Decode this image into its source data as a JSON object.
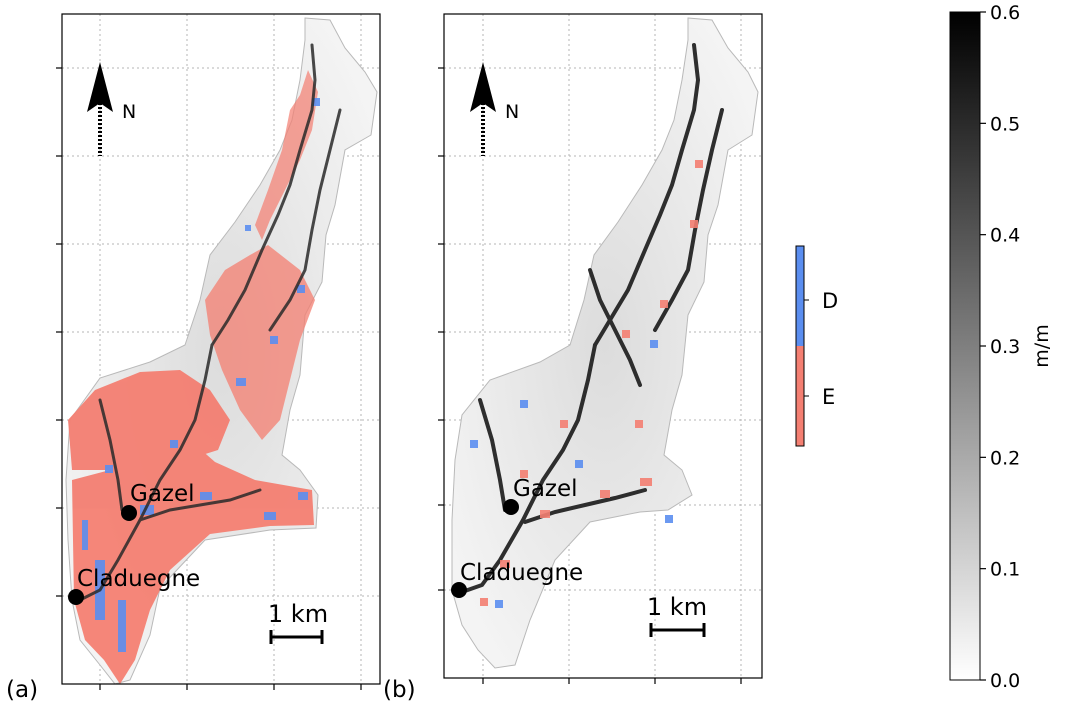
{
  "panels": [
    {
      "id": "a",
      "label": "(a)",
      "north": "N",
      "scale_bar": "1 km",
      "places": [
        {
          "name": "Gazel"
        },
        {
          "name": "Claduegne"
        }
      ]
    },
    {
      "id": "b",
      "label": "(b)",
      "north": "N",
      "scale_bar": "1 km",
      "places": [
        {
          "name": "Gazel"
        },
        {
          "name": "Claduegne"
        }
      ]
    }
  ],
  "category_legend": {
    "items": [
      {
        "label": "D",
        "color": "#5b8ef0"
      },
      {
        "label": "E",
        "color": "#f47f72"
      }
    ]
  },
  "colorbar": {
    "label": "m/m",
    "min": 0.0,
    "max": 0.6,
    "ticks": [
      "0.0",
      "0.1",
      "0.2",
      "0.3",
      "0.4",
      "0.5",
      "0.6"
    ],
    "colormap": "greys"
  },
  "colors": {
    "deposition": "#5b8ef0",
    "erosion": "#f47f72",
    "channel": "#2a2a2a",
    "grid": "#b5b5b5"
  }
}
